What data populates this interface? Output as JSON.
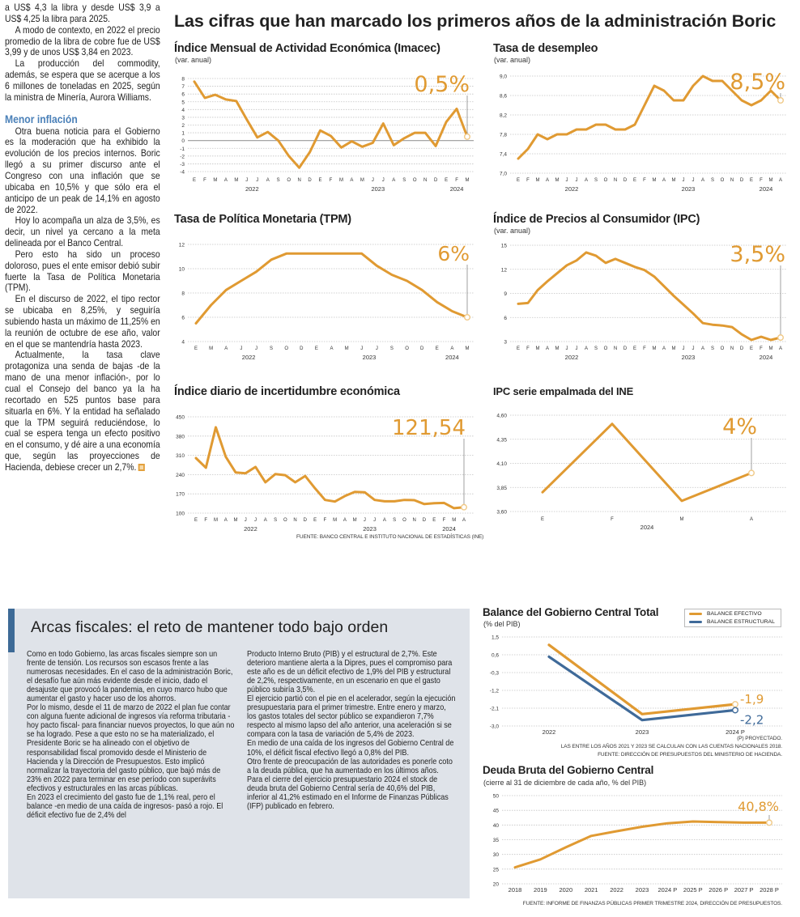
{
  "article": {
    "left_column": {
      "paragraphs_before": [
        "a US$ 4,3 la libra y desde US$ 3,9 a US$ 4,25 la libra para 2025.",
        "A modo de contexto, en 2022 el precio promedio de la libra de cobre fue de US$ 3,99 y de unos US$ 3,84 en 2023.",
        "La producción del commodity, además, se espera que se acerque a los 6 millones de toneladas en 2025, según la ministra de Minería, Aurora Williams."
      ],
      "subheading": "Menor inflación",
      "paragraphs_after": [
        "Otra buena noticia para el Gobierno es la moderación que ha exhibido la evolución de los precios internos. Boric llegó a su primer discurso ante el Congreso con una inflación que se ubicaba en 10,5% y que sólo era el anticipo de un peak de 14,1% en agosto de 2022.",
        "Hoy lo acompaña un alza de 3,5%, es decir, un nivel ya cercano a la meta delineada por el Banco Central.",
        "Pero esto ha sido un proceso doloroso, pues el ente emisor debió subir fuerte la Tasa de Política Monetaria (TPM).",
        "En el discurso de 2022, el tipo rector se ubicaba en 8,25%, y seguiría subiendo hasta un máximo de 11,25% en la reunión de octubre de ese año, valor en el que se mantendría hasta 2023.",
        "Actualmente, la tasa clave protagoniza una senda de bajas -de la mano de una menor inflación-, por lo cual el Consejo del banco ya la ha recortado en 525 puntos base para situarla en 6%. Y la entidad ha señalado que la TPM seguirá reduciéndose, lo cual se espera tenga un efecto positivo en el consumo, y dé aire a una economía que, según las proyecciones de Hacienda, debiese crecer un 2,7%."
      ],
      "end_icon": "end-of-article-square-icon"
    },
    "main_title": "Las cifras que han marcado los primeros años de la administración Boric",
    "fiscal_box": {
      "title": "Arcas fiscales: el reto de mantener todo bajo orden",
      "column1": [
        "Como en todo Gobierno, las arcas fiscales siempre son un frente de tensión. Los recursos son escasos frente a las numerosas necesidades. En el caso de la administración Boric, el desafío fue aún más evidente desde el inicio, dado el desajuste que provocó la pandemia, en cuyo marco hubo que aumentar el gasto y hacer uso de los ahorros.",
        "Por lo mismo, desde el 11 de marzo de 2022 el plan fue contar con alguna fuente adicional de ingresos vía reforma tributaria -hoy pacto fiscal- para financiar nuevos proyectos, lo que aún no se ha logrado. Pese a que esto no se ha materializado, el Presidente Boric se ha alineado con el objetivo de responsabilidad fiscal promovido desde el Ministerio de Hacienda y la Dirección de Presupuestos. Esto implicó normalizar la trayectoria del gasto público, que bajó más de 23% en 2022 para terminar en ese período con superávits efectivos y estructurales en las arcas públicas.",
        "En 2023 el crecimiento del gasto fue de 1,1% real, pero el balance -en medio de una caída de ingresos- pasó a rojo. El déficit efectivo fue de 2,4% del"
      ],
      "column2": [
        "Producto Interno Bruto (PIB) y el estructural de 2,7%. Este deterioro mantiene alerta a la Dipres, pues el compromiso para este año es de un déficit efectivo de 1,9% del PIB y estructural de 2,2%, respectivamente, en un escenario en que el gasto público subiría 3,5%.",
        "El ejercicio partió con el pie en el acelerador, según la ejecución presupuestaria para el primer trimestre. Entre enero y marzo, los gastos totales del sector público se expandieron 7,7% respecto al mismo lapso del año anterior, una aceleración si se compara con la tasa de variación de 5,4% de 2023.",
        "En medio de una caída de los ingresos del Gobierno Central de 10%, el déficit fiscal efectivo llegó a 0,8% del PIB.",
        "Otro frente de preocupación de las autoridades es ponerle coto a la deuda pública, que ha aumentado en los últimos años.",
        "Para el cierre del ejercicio presupuestario 2024 el stock de deuda bruta del Gobierno Central sería de 40,6% del PIB, inferior al 41,2% estimado en el Informe de Finanzas Públicas (IFP) publicado en febrero."
      ]
    },
    "sources": {
      "middle": "FUENTE: BANCO CENTRAL E INSTITUTO NACIONAL DE ESTADÍSTICAS (INE)",
      "balance_note1": "(P) PROYECTADO.",
      "balance_note2": "LAS ENTRE LOS AÑOS 2021 Y 2023 SE CALCULAN  CON LAS CUENTAS NACIONALES 2018.",
      "balance_note3": "FUENTE: DIRECCIÓN DE PRESUPUESTOS DEL MINISTERIO DE HACIENDA.",
      "deuda": "FUENTE: INFORME DE FINANZAS PÚBLICAS PRIMER TRIMESTRE 2024, DIRECCIÓN DE PRESUPUESTOS."
    },
    "colors": {
      "accent": "#e09a32",
      "blue": "#3f6a99",
      "subheading": "#4a80b8",
      "box_bg": "#dfe3e9"
    }
  },
  "chart_data": [
    {
      "id": "imacec",
      "type": "line",
      "title": "Índice Mensual de Actividad Económica (Imacec)",
      "subtitle": "(var. anual)",
      "categories": [
        "E",
        "F",
        "M",
        "A",
        "M",
        "J",
        "J",
        "A",
        "S",
        "O",
        "N",
        "D",
        "E",
        "F",
        "M",
        "A",
        "M",
        "J",
        "J",
        "A",
        "S",
        "O",
        "N",
        "D",
        "E",
        "F",
        "M"
      ],
      "year_groups": [
        {
          "label": "2022",
          "from": 0,
          "to": 11
        },
        {
          "label": "2023",
          "from": 12,
          "to": 23
        },
        {
          "label": "2024",
          "from": 24,
          "to": 26
        }
      ],
      "series": [
        {
          "values": [
            7.6,
            5.5,
            5.9,
            5.3,
            5.1,
            2.7,
            0.4,
            1.1,
            0.0,
            -2.0,
            -3.5,
            -1.5,
            1.3,
            0.6,
            -0.9,
            -0.1,
            -0.8,
            -0.3,
            2.2,
            -0.6,
            0.3,
            1.0,
            1.0,
            -0.7,
            2.4,
            4.1,
            0.5
          ],
          "color": "#e09a32"
        }
      ],
      "ylim": [
        -4,
        8
      ],
      "yticks": [
        "8",
        "7",
        "6",
        "5",
        "4",
        "3",
        "2",
        "1",
        "0",
        "-1",
        "-2",
        "-3",
        "-4"
      ],
      "ytick_values": [
        8,
        7,
        6,
        5,
        4,
        3,
        2,
        1,
        0,
        -1,
        -2,
        -3,
        -4
      ],
      "zero_line": true,
      "grid": true,
      "highlight": "0,5%"
    },
    {
      "id": "desempleo",
      "type": "line",
      "title": "Tasa de desempleo",
      "subtitle": "(var. anual)",
      "categories": [
        "E",
        "F",
        "M",
        "A",
        "M",
        "J",
        "J",
        "A",
        "S",
        "O",
        "N",
        "D",
        "E",
        "F",
        "M",
        "A",
        "M",
        "J",
        "J",
        "A",
        "S",
        "O",
        "N",
        "D",
        "E",
        "F",
        "M",
        "A"
      ],
      "year_groups": [
        {
          "label": "2022",
          "from": 0,
          "to": 11
        },
        {
          "label": "2023",
          "from": 12,
          "to": 23
        },
        {
          "label": "2024",
          "from": 24,
          "to": 27
        }
      ],
      "series": [
        {
          "values": [
            7.3,
            7.5,
            7.8,
            7.7,
            7.8,
            7.8,
            7.9,
            7.9,
            8.0,
            8.0,
            7.9,
            7.9,
            8.0,
            8.4,
            8.8,
            8.7,
            8.5,
            8.5,
            8.8,
            9.0,
            8.9,
            8.9,
            8.7,
            8.5,
            8.4,
            8.5,
            8.7,
            8.5
          ],
          "color": "#e09a32"
        }
      ],
      "ylim": [
        7.0,
        9.0
      ],
      "yticks": [
        "9,0",
        "8,6",
        "8,2",
        "7,8",
        "7,4",
        "7,0"
      ],
      "ytick_values": [
        9.0,
        8.6,
        8.2,
        7.8,
        7.4,
        7.0
      ],
      "grid": true,
      "highlight": "8,5%"
    },
    {
      "id": "tpm",
      "type": "line",
      "title": "Tasa de Política Monetaria (TPM)",
      "subtitle": "",
      "categories": [
        "E",
        "M",
        "A",
        "J",
        "J",
        "S",
        "O",
        "D",
        "E",
        "A",
        "M",
        "J",
        "J",
        "S",
        "O",
        "D",
        "E",
        "A",
        "M"
      ],
      "year_groups": [
        {
          "label": "2022",
          "from": 0,
          "to": 7
        },
        {
          "label": "2023",
          "from": 8,
          "to": 15
        },
        {
          "label": "2024",
          "from": 16,
          "to": 18
        }
      ],
      "series": [
        {
          "values": [
            5.5,
            7.0,
            8.25,
            9.0,
            9.75,
            10.75,
            11.25,
            11.25,
            11.25,
            11.25,
            11.25,
            11.25,
            10.25,
            9.5,
            9.0,
            8.25,
            7.25,
            6.5,
            6.0
          ],
          "color": "#e09a32"
        }
      ],
      "ylim": [
        4,
        12
      ],
      "yticks": [
        "12",
        "10",
        "8",
        "6",
        "4"
      ],
      "ytick_values": [
        12,
        10,
        8,
        6,
        4
      ],
      "grid": true,
      "highlight": "6%"
    },
    {
      "id": "ipc",
      "type": "line",
      "title": "Índice de Precios al Consumidor (IPC)",
      "subtitle": "(var. anual)",
      "categories": [
        "E",
        "F",
        "M",
        "A",
        "M",
        "J",
        "J",
        "A",
        "S",
        "O",
        "N",
        "D",
        "E",
        "F",
        "M",
        "A",
        "M",
        "J",
        "J",
        "A",
        "S",
        "O",
        "N",
        "D",
        "E",
        "F",
        "M",
        "A"
      ],
      "year_groups": [
        {
          "label": "2022",
          "from": 0,
          "to": 11
        },
        {
          "label": "2023",
          "from": 12,
          "to": 23
        },
        {
          "label": "2024",
          "from": 24,
          "to": 27
        }
      ],
      "series": [
        {
          "values": [
            7.7,
            7.8,
            9.4,
            10.5,
            11.5,
            12.5,
            13.1,
            14.1,
            13.7,
            12.8,
            13.3,
            12.8,
            12.3,
            11.9,
            11.1,
            9.9,
            8.7,
            7.6,
            6.5,
            5.3,
            5.1,
            5.0,
            4.8,
            3.9,
            3.2,
            3.6,
            3.2,
            3.5
          ],
          "color": "#e09a32"
        }
      ],
      "ylim": [
        3,
        15
      ],
      "yticks": [
        "15",
        "12",
        "9",
        "6",
        "3"
      ],
      "ytick_values": [
        15,
        12,
        9,
        6,
        3
      ],
      "grid": true,
      "highlight": "3,5%"
    },
    {
      "id": "incertidumbre",
      "type": "line",
      "title": "Índice diario de incertidumbre económica",
      "subtitle": "",
      "categories": [
        "E",
        "F",
        "M",
        "A",
        "M",
        "J",
        "J",
        "A",
        "S",
        "O",
        "N",
        "D",
        "E",
        "F",
        "M",
        "A",
        "M",
        "J",
        "J",
        "A",
        "S",
        "O",
        "N",
        "D",
        "E",
        "F",
        "M",
        "A"
      ],
      "year_groups": [
        {
          "label": "2022",
          "from": 0,
          "to": 11
        },
        {
          "label": "2023",
          "from": 12,
          "to": 23
        },
        {
          "label": "2024",
          "from": 24,
          "to": 27
        }
      ],
      "series": [
        {
          "values": [
            300,
            265,
            412,
            305,
            248,
            245,
            268,
            212,
            242,
            238,
            212,
            235,
            190,
            148,
            142,
            162,
            177,
            176,
            148,
            143,
            143,
            148,
            147,
            133,
            136,
            137,
            118,
            121.54
          ],
          "color": "#e09a32"
        }
      ],
      "ylim": [
        100,
        450
      ],
      "yticks": [
        "450",
        "380",
        "310",
        "240",
        "170",
        "100"
      ],
      "ytick_values": [
        450,
        380,
        310,
        240,
        170,
        100
      ],
      "grid": true,
      "highlight": "121,54"
    },
    {
      "id": "ipc-empalmada",
      "type": "line",
      "title": "IPC serie empalmada del INE",
      "subtitle": "",
      "categories": [
        "E",
        "F",
        "M",
        "A"
      ],
      "year_groups": [
        {
          "label": "2024",
          "from": 0,
          "to": 3
        }
      ],
      "series": [
        {
          "values": [
            3.8,
            4.51,
            3.71,
            4.0
          ],
          "color": "#e09a32"
        }
      ],
      "ylim": [
        3.6,
        4.6
      ],
      "yticks": [
        "4,60",
        "4,35",
        "4,10",
        "3,85",
        "3,60"
      ],
      "ytick_values": [
        4.6,
        4.35,
        4.1,
        3.85,
        3.6
      ],
      "grid": true,
      "highlight": "4%"
    },
    {
      "id": "balance",
      "type": "line",
      "title": "Balance del Gobierno Central Total",
      "subtitle": "(% del PIB)",
      "categories": [
        "2022",
        "2023",
        "2024 P"
      ],
      "series": [
        {
          "name": "BALANCE EFECTIVO",
          "values": [
            1.1,
            -2.4,
            -1.9
          ],
          "color": "#e09a32",
          "label": "-1,9"
        },
        {
          "name": "BALANCE ESTRUCTURAL",
          "values": [
            0.5,
            -2.7,
            -2.2
          ],
          "color": "#3f6a99",
          "label": "-2,2"
        }
      ],
      "ylim": [
        -3.0,
        1.5
      ],
      "yticks": [
        "1,5",
        "0,6",
        "-0,3",
        "-1,2",
        "-2,1",
        "-3,0"
      ],
      "ytick_values": [
        1.5,
        0.6,
        -0.3,
        -1.2,
        -2.1,
        -3.0
      ],
      "grid": true,
      "legend": "top-right"
    },
    {
      "id": "deuda",
      "type": "line",
      "title": "Deuda Bruta del Gobierno Central",
      "subtitle": "(cierre al 31 de diciembre de cada año, % del PIB)",
      "categories": [
        "2018",
        "2019",
        "2020",
        "2021",
        "2022",
        "2023",
        "2024 P",
        "2025 P",
        "2026 P",
        "2027 P",
        "2028 P"
      ],
      "series": [
        {
          "values": [
            25.6,
            28.3,
            32.4,
            36.3,
            37.9,
            39.4,
            40.6,
            41.2,
            41.0,
            40.8,
            40.8
          ],
          "color": "#e09a32"
        }
      ],
      "ylim": [
        20,
        50
      ],
      "yticks": [
        "50",
        "45",
        "40",
        "35",
        "30",
        "25",
        "20"
      ],
      "ytick_values": [
        50,
        45,
        40,
        35,
        30,
        25,
        20
      ],
      "grid": true,
      "highlight": "40,8%"
    }
  ]
}
